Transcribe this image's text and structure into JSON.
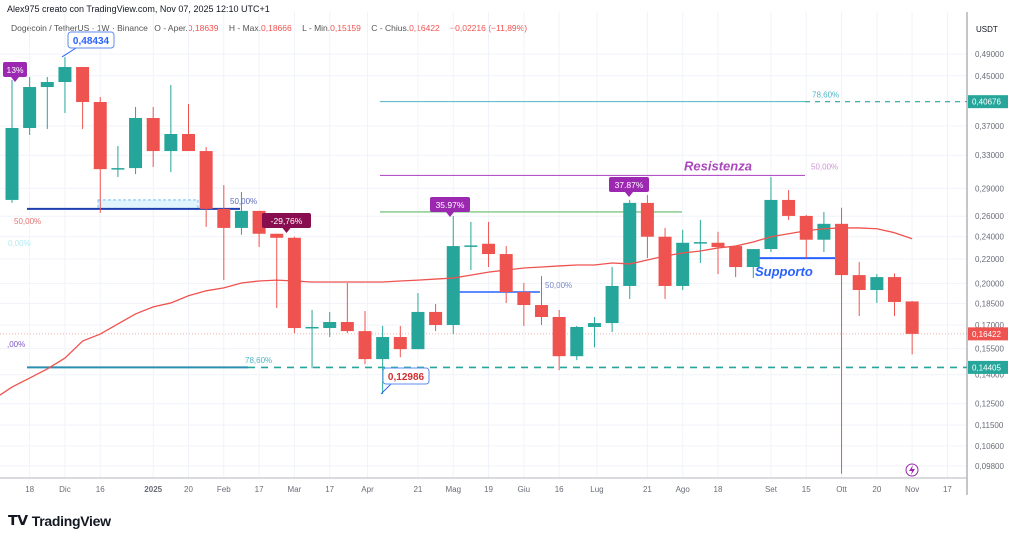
{
  "credit": "Alex975 creato con TradingView.com, Nov 07, 2025 12:10 UTC+1",
  "legend": {
    "symbol": "Dogecoin / TetherUS · 1W · Binance",
    "open_label": "O - Aper.",
    "open": "0,18639",
    "high_label": "H - Max.",
    "high": "0,18666",
    "low_label": "L - Min.",
    "low": "0,15159",
    "close_label": "C - Chius.",
    "close": "0,16422",
    "change": "−0,02216 (−11,89%)"
  },
  "brand": {
    "logo": "TV",
    "name": "TradingView"
  },
  "colors": {
    "up": "#26a69a",
    "down": "#ef5350",
    "ma": "#ef5350",
    "purple": "#9c27b0",
    "blue": "#2962ff",
    "teal": "#26a69a"
  },
  "chart_data": {
    "type": "candlestick",
    "yscale": "log",
    "ylim": [
      0.088,
      0.52
    ],
    "currency": "USDT",
    "grid": true,
    "y_ticks": [
      "0,49000",
      "0,45000",
      "0,37000",
      "0,33000",
      "0,29000",
      "0,26000",
      "0,24000",
      "0,22000",
      "0,20000",
      "0,18500",
      "0,17000",
      "0,15500",
      "0,14000",
      "0,12500",
      "0,11500",
      "0,10600",
      "0,09800"
    ],
    "x_ticks": [
      {
        "label": "18",
        "date": "2024-11-18"
      },
      {
        "label": "Dic",
        "date": "2024-12-02"
      },
      {
        "label": "16",
        "date": "2024-12-16"
      },
      {
        "label": "2025",
        "date": "2025-01-06",
        "bold": true
      },
      {
        "label": "20",
        "date": "2025-01-20"
      },
      {
        "label": "Feb",
        "date": "2025-02-03"
      },
      {
        "label": "17",
        "date": "2025-02-17"
      },
      {
        "label": "Mar",
        "date": "2025-03-03"
      },
      {
        "label": "17",
        "date": "2025-03-17"
      },
      {
        "label": "Apr",
        "date": "2025-04-01"
      },
      {
        "label": "21",
        "date": "2025-04-21"
      },
      {
        "label": "Mag",
        "date": "2025-05-05"
      },
      {
        "label": "19",
        "date": "2025-05-19"
      },
      {
        "label": "Giu",
        "date": "2025-06-02"
      },
      {
        "label": "16",
        "date": "2025-06-16"
      },
      {
        "label": "Lug",
        "date": "2025-07-01"
      },
      {
        "label": "21",
        "date": "2025-07-21"
      },
      {
        "label": "Ago",
        "date": "2025-08-04"
      },
      {
        "label": "18",
        "date": "2025-08-18"
      },
      {
        "label": "Set",
        "date": "2025-09-08"
      },
      {
        "label": "15",
        "date": "2025-09-22"
      },
      {
        "label": "Ott",
        "date": "2025-10-06"
      },
      {
        "label": "20",
        "date": "2025-10-20"
      },
      {
        "label": "Nov",
        "date": "2025-11-03"
      },
      {
        "label": "17",
        "date": "2025-11-17"
      }
    ],
    "candles": [
      {
        "date": "2024-11-11",
        "o": 0.2771,
        "h": 0.4427,
        "l": 0.2739,
        "c": 0.367
      },
      {
        "date": "2024-11-18",
        "o": 0.367,
        "h": 0.4479,
        "l": 0.3571,
        "c": 0.4307
      },
      {
        "date": "2024-11-25",
        "o": 0.4307,
        "h": 0.4479,
        "l": 0.3656,
        "c": 0.4392
      },
      {
        "date": "2024-12-02",
        "o": 0.4392,
        "h": 0.4843,
        "l": 0.3892,
        "c": 0.4657
      },
      {
        "date": "2024-12-09",
        "o": 0.4657,
        "h": 0.4657,
        "l": 0.3656,
        "c": 0.4062
      },
      {
        "date": "2024-12-16",
        "o": 0.4062,
        "h": 0.4142,
        "l": 0.2634,
        "c": 0.3125
      },
      {
        "date": "2024-12-23",
        "o": 0.3125,
        "h": 0.3421,
        "l": 0.303,
        "c": 0.3138
      },
      {
        "date": "2024-12-30",
        "o": 0.3138,
        "h": 0.3984,
        "l": 0.3065,
        "c": 0.3816
      },
      {
        "date": "2025-01-06",
        "o": 0.3816,
        "h": 0.3984,
        "l": 0.3151,
        "c": 0.3354
      },
      {
        "date": "2025-01-13",
        "o": 0.3354,
        "h": 0.4341,
        "l": 0.3089,
        "c": 0.3585
      },
      {
        "date": "2025-01-20",
        "o": 0.3585,
        "h": 0.4031,
        "l": 0.3354,
        "c": 0.3354
      },
      {
        "date": "2025-01-27",
        "o": 0.3354,
        "h": 0.3407,
        "l": 0.2494,
        "c": 0.2676
      },
      {
        "date": "2025-02-03",
        "o": 0.2676,
        "h": 0.2936,
        "l": 0.2026,
        "c": 0.2484
      },
      {
        "date": "2025-02-10",
        "o": 0.2484,
        "h": 0.2858,
        "l": 0.2419,
        "c": 0.2655
      },
      {
        "date": "2025-02-17",
        "o": 0.2655,
        "h": 0.2655,
        "l": 0.2305,
        "c": 0.2428
      },
      {
        "date": "2025-02-24",
        "o": 0.2428,
        "h": 0.2428,
        "l": 0.1817,
        "c": 0.239
      },
      {
        "date": "2025-03-03",
        "o": 0.239,
        "h": 0.24,
        "l": 0.1647,
        "c": 0.168
      },
      {
        "date": "2025-03-10",
        "o": 0.168,
        "h": 0.1803,
        "l": 0.1436,
        "c": 0.1687
      },
      {
        "date": "2025-03-17",
        "o": 0.168,
        "h": 0.1789,
        "l": 0.1622,
        "c": 0.172
      },
      {
        "date": "2025-03-24",
        "o": 0.172,
        "h": 0.2003,
        "l": 0.1647,
        "c": 0.166
      },
      {
        "date": "2025-03-31",
        "o": 0.166,
        "h": 0.1796,
        "l": 0.1459,
        "c": 0.1488
      },
      {
        "date": "2025-04-07",
        "o": 0.1488,
        "h": 0.1694,
        "l": 0.12986,
        "c": 0.1622
      },
      {
        "date": "2025-04-14",
        "o": 0.1622,
        "h": 0.1694,
        "l": 0.1499,
        "c": 0.1547
      },
      {
        "date": "2025-04-21",
        "o": 0.1547,
        "h": 0.1926,
        "l": 0.1547,
        "c": 0.1789
      },
      {
        "date": "2025-04-28",
        "o": 0.1789,
        "h": 0.1845,
        "l": 0.166,
        "c": 0.17
      },
      {
        "date": "2025-05-05",
        "o": 0.17,
        "h": 0.2603,
        "l": 0.1641,
        "c": 0.2314
      },
      {
        "date": "2025-05-12",
        "o": 0.2314,
        "h": 0.2543,
        "l": 0.2107,
        "c": 0.232
      },
      {
        "date": "2025-05-19",
        "o": 0.2335,
        "h": 0.2543,
        "l": 0.2132,
        "c": 0.2243
      },
      {
        "date": "2025-05-26",
        "o": 0.2243,
        "h": 0.2314,
        "l": 0.1853,
        "c": 0.1934
      },
      {
        "date": "2025-06-02",
        "o": 0.1934,
        "h": 0.2003,
        "l": 0.1694,
        "c": 0.1838
      },
      {
        "date": "2025-06-09",
        "o": 0.1838,
        "h": 0.2058,
        "l": 0.17,
        "c": 0.1754
      },
      {
        "date": "2025-06-16",
        "o": 0.1754,
        "h": 0.1803,
        "l": 0.1425,
        "c": 0.1505
      },
      {
        "date": "2025-06-23",
        "o": 0.1505,
        "h": 0.1694,
        "l": 0.1482,
        "c": 0.1687
      },
      {
        "date": "2025-06-30",
        "o": 0.1687,
        "h": 0.1754,
        "l": 0.1558,
        "c": 0.1713
      },
      {
        "date": "2025-07-07",
        "o": 0.1713,
        "h": 0.2132,
        "l": 0.1654,
        "c": 0.198
      },
      {
        "date": "2025-07-14",
        "o": 0.198,
        "h": 0.2771,
        "l": 0.1882,
        "c": 0.2739
      },
      {
        "date": "2025-07-21",
        "o": 0.2739,
        "h": 0.2825,
        "l": 0.2208,
        "c": 0.24
      },
      {
        "date": "2025-07-28",
        "o": 0.24,
        "h": 0.2484,
        "l": 0.1882,
        "c": 0.198
      },
      {
        "date": "2025-08-04",
        "o": 0.198,
        "h": 0.2466,
        "l": 0.1949,
        "c": 0.2344
      },
      {
        "date": "2025-08-11",
        "o": 0.2344,
        "h": 0.2563,
        "l": 0.2166,
        "c": 0.235
      },
      {
        "date": "2025-08-18",
        "o": 0.2344,
        "h": 0.2447,
        "l": 0.2074,
        "c": 0.2305
      },
      {
        "date": "2025-08-25",
        "o": 0.2314,
        "h": 0.2314,
        "l": 0.205,
        "c": 0.2132
      },
      {
        "date": "2025-09-01",
        "o": 0.2132,
        "h": 0.2287,
        "l": 0.2042,
        "c": 0.2287
      },
      {
        "date": "2025-09-08",
        "o": 0.2287,
        "h": 0.303,
        "l": 0.2261,
        "c": 0.2771
      },
      {
        "date": "2025-09-15",
        "o": 0.2771,
        "h": 0.288,
        "l": 0.2563,
        "c": 0.2603
      },
      {
        "date": "2025-09-22",
        "o": 0.2603,
        "h": 0.2613,
        "l": 0.2208,
        "c": 0.2372
      },
      {
        "date": "2025-09-29",
        "o": 0.2372,
        "h": 0.2644,
        "l": 0.2261,
        "c": 0.2524
      },
      {
        "date": "2025-10-06",
        "o": 0.2524,
        "h": 0.2688,
        "l": 0.0951,
        "c": 0.2066
      },
      {
        "date": "2025-10-13",
        "o": 0.2066,
        "h": 0.2174,
        "l": 0.1761,
        "c": 0.1949
      },
      {
        "date": "2025-10-20",
        "o": 0.1949,
        "h": 0.2074,
        "l": 0.1853,
        "c": 0.205
      },
      {
        "date": "2025-10-27",
        "o": 0.205,
        "h": 0.208,
        "l": 0.1761,
        "c": 0.186
      },
      {
        "date": "2025-11-03",
        "o": 0.18639,
        "h": 0.18666,
        "l": 0.15159,
        "c": 0.16422
      }
    ],
    "moving_average": [
      0.1334,
      0.1382,
      0.1432,
      0.1494,
      0.1597,
      0.1641,
      0.1707,
      0.1775,
      0.1825,
      0.1853,
      0.1906,
      0.1943,
      0.1965,
      0.2003,
      0.2019,
      0.2026,
      0.2019,
      0.2011,
      0.2011,
      0.2011,
      0.2011,
      0.2011,
      0.2019,
      0.2026,
      0.2034,
      0.2042,
      0.2066,
      0.209,
      0.2107,
      0.2124,
      0.2132,
      0.2141,
      0.2149,
      0.2149,
      0.2166,
      0.2158,
      0.2191,
      0.2226,
      0.2252,
      0.227,
      0.2297,
      0.2314,
      0.2351,
      0.24,
      0.2428,
      0.2457,
      0.2476,
      0.2484,
      0.2484,
      0.2476,
      0.2438,
      0.2381
    ],
    "price_tags": [
      {
        "value": 0.40676,
        "label": "0,40676",
        "color": "#26a69a"
      },
      {
        "value": 0.16422,
        "label": "0,16422",
        "color": "#ef5350"
      },
      {
        "value": 0.14405,
        "label": "0,14405",
        "color": "#26a69a"
      }
    ],
    "annotations": {
      "fib_upper_786": {
        "price": 0.40676,
        "label": "78,60%"
      },
      "resistance": {
        "price": 0.3049,
        "label": "Resistenza",
        "pct": "50,00%"
      },
      "green_level": {
        "price": 0.2644
      },
      "left_50": {
        "price": 0.2676,
        "label": "50,00%"
      },
      "left_red_50": "50,00%",
      "left_zero": "0,00%",
      "left_purple": ",00%",
      "fib_lower_786": {
        "price": 0.14405,
        "label": "78,60%"
      },
      "mid_50": {
        "price": 0.1934,
        "label": "50,00%"
      },
      "support": {
        "price": 0.2208,
        "label": "Supporto"
      },
      "pct_tags": [
        {
          "label": "13%",
          "color": "#9c27b0"
        },
        {
          "label": "-29,76%",
          "color": "#880e4f"
        },
        {
          "label": "35.97%",
          "color": "#9c27b0"
        },
        {
          "label": "37.87%",
          "color": "#9c27b0"
        }
      ],
      "high_callout": {
        "price": 0.48434,
        "label": "0,48434"
      },
      "low_callout": {
        "price": 0.12986,
        "label": "0,12986"
      }
    }
  }
}
